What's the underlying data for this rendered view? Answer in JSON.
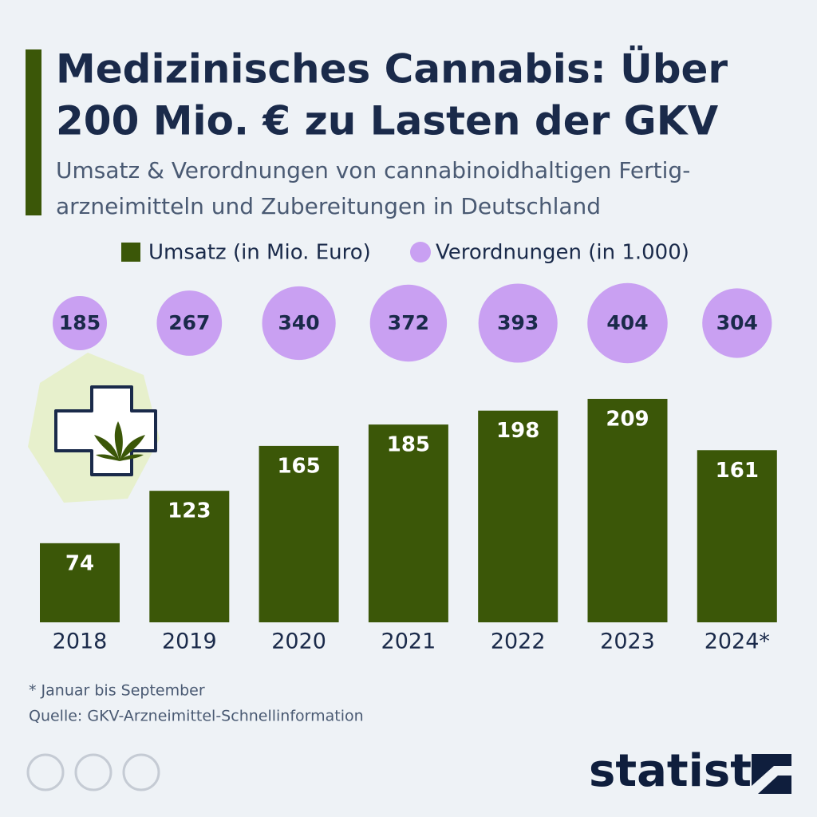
{
  "chart_data": {
    "type": "bar",
    "title": [
      "Medizinisches Cannabis: Über",
      "200 Mio. € zu Lasten der GKV"
    ],
    "subtitle": [
      "Umsatz & Verordnungen von cannabinoidhaltigen Fertig-",
      "arzneimitteln und Zubereitungen in Deutschland"
    ],
    "categories": [
      "2018",
      "2019",
      "2020",
      "2021",
      "2022",
      "2023",
      "2024*"
    ],
    "series": [
      {
        "name": "Umsatz (in Mio. Euro)",
        "color": "#3b5708",
        "values": [
          74,
          123,
          165,
          185,
          198,
          209,
          161
        ]
      },
      {
        "name": "Verordnungen (in 1.000)",
        "color": "#c9a0f2",
        "values": [
          185,
          267,
          340,
          372,
          393,
          404,
          304
        ]
      }
    ],
    "footnote": "* Januar bis September",
    "source": "Quelle: GKV-Arzneimittel-Schnellinformation",
    "logo": "statista"
  }
}
